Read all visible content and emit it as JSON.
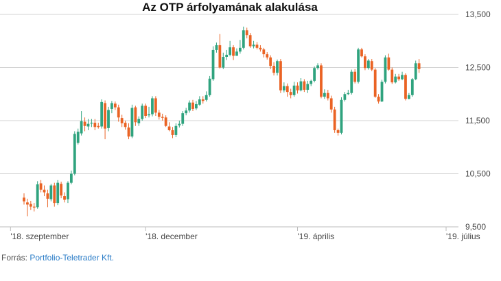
{
  "chart_data": {
    "type": "candlestick",
    "title": "Az OTP árfolyamának alakulása",
    "xlabel": "",
    "ylabel": "",
    "ylim": [
      9500,
      13500
    ],
    "yticks": [
      9500,
      10500,
      11500,
      12500,
      13500
    ],
    "ytick_labels": [
      "9,500",
      "10,500",
      "11,500",
      "12,500",
      "13,500"
    ],
    "xtick_labels": [
      "'18. szeptember",
      "'18. december",
      "'19. április",
      "'19. július"
    ],
    "xtick_index": [
      -4,
      36,
      81,
      125
    ],
    "grid": "horizontal",
    "colors": {
      "up": "#2fa37e",
      "down": "#ea6324",
      "grid": "#d3d3d3",
      "axis": "#bbbbbb"
    },
    "candles": [
      [
        10050,
        9980,
        10130,
        9920
      ],
      [
        9960,
        9920,
        10030,
        9700
      ],
      [
        9930,
        9880,
        9990,
        9820
      ],
      [
        9880,
        9870,
        9950,
        9790
      ],
      [
        9870,
        10300,
        10360,
        9840
      ],
      [
        10320,
        10200,
        10380,
        10150
      ],
      [
        10200,
        10150,
        10280,
        10080
      ],
      [
        10130,
        10030,
        10200,
        9870
      ],
      [
        10020,
        10280,
        10310,
        9980
      ],
      [
        10280,
        9950,
        10330,
        9880
      ],
      [
        9950,
        10330,
        10380,
        9910
      ],
      [
        10310,
        10090,
        10350,
        10040
      ],
      [
        10080,
        10010,
        10150,
        9960
      ],
      [
        10020,
        10330,
        10360,
        9950
      ],
      [
        10330,
        10500,
        10560,
        10300
      ],
      [
        10500,
        11250,
        11300,
        10470
      ],
      [
        11080,
        11290,
        11350,
        11050
      ],
      [
        11260,
        11490,
        11680,
        11220
      ],
      [
        11480,
        11400,
        11560,
        11300
      ],
      [
        11390,
        11440,
        11530,
        11320
      ],
      [
        11450,
        11460,
        11530,
        11380
      ],
      [
        11460,
        11380,
        11530,
        11320
      ],
      [
        11400,
        11380,
        11460,
        11350
      ],
      [
        11390,
        11850,
        11900,
        11350
      ],
      [
        11830,
        11350,
        11880,
        11150
      ],
      [
        11360,
        11700,
        11760,
        11300
      ],
      [
        11720,
        11830,
        11870,
        11640
      ],
      [
        11820,
        11750,
        11860,
        11700
      ],
      [
        11750,
        11560,
        11800,
        11480
      ],
      [
        11550,
        11450,
        11610,
        11380
      ],
      [
        11460,
        11380,
        11500,
        11330
      ],
      [
        11370,
        11200,
        11450,
        11150
      ],
      [
        11200,
        11740,
        11800,
        11170
      ],
      [
        11750,
        11470,
        11780,
        11400
      ],
      [
        11450,
        11530,
        11580,
        11400
      ],
      [
        11530,
        11780,
        11820,
        11500
      ],
      [
        11780,
        11590,
        11820,
        11550
      ],
      [
        11600,
        11620,
        11760,
        11560
      ],
      [
        11620,
        11920,
        11960,
        11580
      ],
      [
        11920,
        11650,
        11960,
        11590
      ],
      [
        11650,
        11570,
        11700,
        11520
      ],
      [
        11570,
        11560,
        11630,
        11500
      ],
      [
        11560,
        11400,
        11600,
        11380
      ],
      [
        11390,
        11320,
        11470,
        11300
      ],
      [
        11320,
        11230,
        11380,
        11170
      ],
      [
        11230,
        11400,
        11450,
        11190
      ],
      [
        11410,
        11440,
        11500,
        11370
      ],
      [
        11440,
        11640,
        11680,
        11400
      ],
      [
        11640,
        11690,
        11740,
        11600
      ],
      [
        11690,
        11840,
        11880,
        11650
      ],
      [
        11840,
        11720,
        11890,
        11680
      ],
      [
        11730,
        11810,
        11870,
        11700
      ],
      [
        11800,
        11900,
        11960,
        11780
      ],
      [
        11900,
        11870,
        11960,
        11820
      ],
      [
        11890,
        11980,
        12050,
        11860
      ],
      [
        11980,
        12290,
        12340,
        11950
      ],
      [
        12280,
        12830,
        12900,
        12250
      ],
      [
        12830,
        12920,
        12970,
        12780
      ],
      [
        12920,
        12500,
        13130,
        12480
      ],
      [
        12500,
        12700,
        12780,
        12470
      ],
      [
        12700,
        12740,
        12830,
        12640
      ],
      [
        12740,
        12880,
        13000,
        12710
      ],
      [
        12880,
        12720,
        12920,
        12640
      ],
      [
        12720,
        12800,
        12860,
        12720
      ],
      [
        12800,
        12870,
        13020,
        12760
      ],
      [
        12870,
        13200,
        13270,
        12840
      ],
      [
        13200,
        13110,
        13250,
        13050
      ],
      [
        13110,
        12900,
        13150,
        12870
      ],
      [
        12900,
        12930,
        13000,
        12860
      ],
      [
        12930,
        12870,
        12980,
        12840
      ],
      [
        12870,
        12840,
        12920,
        12800
      ],
      [
        12840,
        12750,
        12870,
        12690
      ],
      [
        12750,
        12690,
        12790,
        12650
      ],
      [
        12690,
        12530,
        12730,
        12470
      ],
      [
        12530,
        12400,
        12600,
        12350
      ],
      [
        12400,
        12620,
        12650,
        12350
      ],
      [
        12620,
        12070,
        12660,
        12020
      ],
      [
        12070,
        12150,
        12220,
        12030
      ],
      [
        12150,
        12040,
        12200,
        11950
      ],
      [
        12040,
        11980,
        12100,
        11920
      ],
      [
        11980,
        12160,
        12230,
        11950
      ],
      [
        12160,
        12070,
        12220,
        12010
      ],
      [
        12070,
        12240,
        12300,
        12050
      ],
      [
        12240,
        12080,
        12280,
        12040
      ],
      [
        12080,
        12190,
        12250,
        12020
      ],
      [
        12190,
        12250,
        12270,
        12150
      ],
      [
        12250,
        12490,
        12520,
        12220
      ],
      [
        12490,
        12540,
        12580,
        12460
      ],
      [
        12540,
        11950,
        12580,
        11920
      ],
      [
        11950,
        12020,
        12090,
        11910
      ],
      [
        12020,
        11920,
        12080,
        11880
      ],
      [
        11920,
        11710,
        11970,
        11650
      ],
      [
        11710,
        11320,
        11760,
        11270
      ],
      [
        11320,
        11270,
        11350,
        11220
      ],
      [
        11270,
        11890,
        11940,
        11240
      ],
      [
        11890,
        12000,
        12040,
        11860
      ],
      [
        12000,
        12020,
        12080,
        11980
      ],
      [
        12020,
        12420,
        12460,
        11990
      ],
      [
        12420,
        12230,
        12470,
        12200
      ],
      [
        12230,
        12840,
        12870,
        12200
      ],
      [
        12840,
        12710,
        12870,
        12690
      ],
      [
        12710,
        12490,
        12750,
        12450
      ],
      [
        12490,
        12630,
        12660,
        12460
      ],
      [
        12620,
        12460,
        12660,
        12430
      ],
      [
        12460,
        11950,
        12490,
        11930
      ],
      [
        11950,
        11860,
        12000,
        11820
      ],
      [
        11860,
        12230,
        12270,
        11850
      ],
      [
        12230,
        12690,
        12730,
        12200
      ],
      [
        12690,
        12460,
        12760,
        12440
      ],
      [
        12460,
        12220,
        12500,
        12190
      ],
      [
        12220,
        12330,
        12380,
        12200
      ],
      [
        12330,
        12280,
        12380,
        12250
      ],
      [
        12280,
        12360,
        12420,
        12260
      ],
      [
        12360,
        11910,
        12390,
        11880
      ],
      [
        11910,
        11980,
        12020,
        11900
      ],
      [
        11980,
        12280,
        12300,
        11950
      ],
      [
        12280,
        12580,
        12630,
        12260
      ],
      [
        12580,
        12470,
        12660,
        12400
      ]
    ]
  },
  "footer": {
    "source_label": "Forrás: ",
    "source_link": "Portfolio-Teletrader Kft."
  }
}
